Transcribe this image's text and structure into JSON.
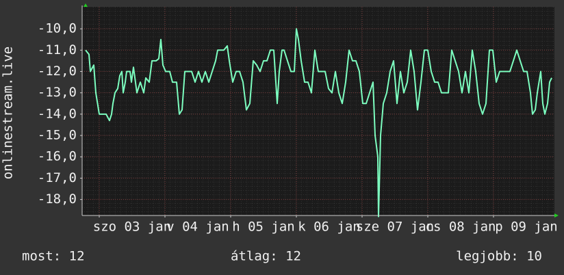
{
  "chart_data": {
    "type": "line",
    "y_label": "onlinestream.live",
    "xlim": [
      0,
      172.5
    ],
    "xticks": [
      {
        "value": 6.25,
        "label": "szo 03 jan"
      },
      {
        "value": 30.25,
        "label": "v 04 jan"
      },
      {
        "value": 54.25,
        "label": "h 05 jan"
      },
      {
        "value": 78.25,
        "label": "k 06 jan"
      },
      {
        "value": 102.25,
        "label": "sze 07 jan"
      },
      {
        "value": 126.25,
        "label": "cs 08 jan"
      },
      {
        "value": 150.25,
        "label": "p 09 jan"
      }
    ],
    "ylim": [
      -18.75,
      -8.97
    ],
    "yticks": [
      {
        "value": -10,
        "label": "-10,0"
      },
      {
        "value": -11,
        "label": "-11,0"
      },
      {
        "value": -12,
        "label": "-12,0"
      },
      {
        "value": -13,
        "label": "-13,0"
      },
      {
        "value": -14,
        "label": "-14,0"
      },
      {
        "value": -15,
        "label": "-15,0"
      },
      {
        "value": -16,
        "label": "-16,0"
      },
      {
        "value": -17,
        "label": "-17,0"
      },
      {
        "value": -18,
        "label": "-18,0"
      }
    ],
    "grid": true,
    "series": [
      {
        "color": "#7dffc0",
        "x": [
          1.25,
          2.5,
          3,
          4.25,
          5,
          6.25,
          8.75,
          10,
          10.75,
          11.25,
          12,
          13,
          13.75,
          14.5,
          15,
          15.75,
          16.25,
          17.5,
          18,
          18.75,
          20,
          21.25,
          22.5,
          23.25,
          24.5,
          25.5,
          27,
          28,
          28.75,
          29.5,
          30.5,
          32,
          33,
          34.5,
          35.5,
          36.5,
          37.5,
          38.75,
          40,
          41.25,
          42.5,
          43.75,
          45,
          46.25,
          47.5,
          48.75,
          49.5,
          50.5,
          51.75,
          53,
          53.75,
          55,
          56.25,
          57.5,
          58.75,
          60,
          61.25,
          62.5,
          63.75,
          65,
          66.25,
          67.5,
          68.75,
          70,
          71.25,
          72,
          73,
          73.75,
          75,
          76.25,
          77.5,
          78.25,
          79,
          80,
          81.25,
          82.5,
          83.75,
          85,
          86.25,
          87.5,
          88.75,
          90,
          91.25,
          92.5,
          93.75,
          95,
          96.25,
          97.5,
          98.75,
          100,
          101.25,
          102.5,
          103.75,
          105,
          106.25,
          107,
          108,
          108.25,
          109,
          110,
          111.25,
          112.5,
          113.75,
          115,
          116.25,
          117.5,
          118.75,
          120,
          121.25,
          122.5,
          123.75,
          125,
          126.25,
          127.5,
          128.75,
          130,
          131.25,
          132.5,
          133.75,
          135,
          136.25,
          137.5,
          138.75,
          140,
          141.25,
          142.5,
          143.75,
          145,
          146.25,
          147.5,
          148.75,
          150,
          151.25,
          152.5,
          153.75,
          155,
          156.25,
          157.5,
          158.75,
          160,
          161.25,
          162.5,
          163.75,
          164.5,
          165.5,
          166.25,
          167.5,
          168.25,
          169,
          170,
          170.75,
          171.5
        ],
        "values": [
          -11,
          -11.2,
          -12,
          -11.7,
          -13,
          -14,
          -14,
          -14.3,
          -14,
          -13.5,
          -13,
          -12.8,
          -12.2,
          -12,
          -13,
          -12.5,
          -12,
          -12,
          -12.5,
          -11.8,
          -13,
          -12.5,
          -13,
          -12.3,
          -12.5,
          -11.5,
          -11.5,
          -11.4,
          -10.5,
          -11.7,
          -12,
          -12,
          -12.5,
          -12.5,
          -14,
          -13.8,
          -12,
          -12,
          -12,
          -12.5,
          -12,
          -12.5,
          -12,
          -12.5,
          -12,
          -11.5,
          -11,
          -11,
          -11,
          -10.8,
          -11.5,
          -12.5,
          -12,
          -12,
          -12.5,
          -13.8,
          -13.5,
          -11.5,
          -11.7,
          -12,
          -11.5,
          -11.5,
          -11,
          -11,
          -13.5,
          -12,
          -11,
          -11,
          -11.5,
          -12,
          -12,
          -10,
          -10.5,
          -11.5,
          -12.5,
          -12.5,
          -13,
          -11,
          -12,
          -12,
          -12,
          -12.8,
          -13,
          -12,
          -13,
          -13.5,
          -12.5,
          -11,
          -11.5,
          -11.5,
          -12,
          -13.5,
          -13.5,
          -13,
          -12.5,
          -15,
          -16,
          -18.8,
          -15,
          -13.5,
          -13,
          -12,
          -11.5,
          -13.5,
          -12,
          -13,
          -12.5,
          -11,
          -12,
          -13.8,
          -12.5,
          -11,
          -11,
          -12,
          -12.5,
          -12.5,
          -13,
          -13,
          -13,
          -11,
          -11.5,
          -12,
          -13,
          -12,
          -13,
          -11,
          -12,
          -13.5,
          -14,
          -13.5,
          -11,
          -11,
          -12.5,
          -12,
          -12,
          -12,
          -12,
          -11.5,
          -11,
          -11.5,
          -12,
          -12,
          -13,
          -14,
          -13.8,
          -13,
          -12,
          -13.5,
          -14,
          -13.5,
          -12.5,
          -12.3
        ]
      }
    ],
    "footer": [
      "most: 12",
      "átlag: 12",
      "legjobb: 10"
    ]
  }
}
